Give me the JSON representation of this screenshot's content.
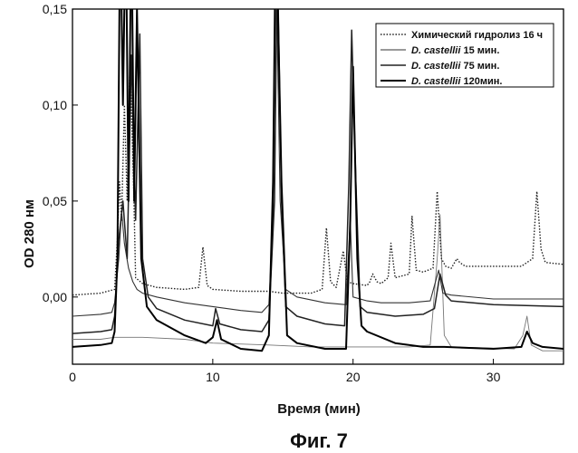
{
  "chart_data": {
    "type": "line",
    "title": "",
    "xlabel": "Время (мин)",
    "ylabel": "OD 280 нм",
    "caption": "Фиг. 7",
    "xlim": [
      0,
      35
    ],
    "ylim": [
      -0.035,
      0.15
    ],
    "x_ticks": [
      {
        "value": 0,
        "label": "0"
      },
      {
        "value": 10,
        "label": "10"
      },
      {
        "value": 20,
        "label": "20"
      },
      {
        "value": 30,
        "label": "30"
      }
    ],
    "y_ticks": [
      {
        "value": 0.0,
        "label": "0,00"
      },
      {
        "value": 0.05,
        "label": "0,05"
      },
      {
        "value": 0.1,
        "label": "0,10"
      },
      {
        "value": 0.15,
        "label": "0,15"
      }
    ],
    "legend_position": "top-right",
    "series": [
      {
        "name_prefix": "",
        "name_suffix": "Химический гидролиз 16 ч",
        "style": "dotted",
        "color": "#222222",
        "points": [
          [
            0,
            0.001
          ],
          [
            2,
            0.002
          ],
          [
            3,
            0.004
          ],
          [
            3.2,
            0.03
          ],
          [
            3.35,
            0.06
          ],
          [
            3.5,
            0.04
          ],
          [
            3.7,
            0.1
          ],
          [
            3.9,
            0.05
          ],
          [
            4.1,
            0.123
          ],
          [
            4.35,
            0.06
          ],
          [
            4.5,
            0.01
          ],
          [
            5,
            0.007
          ],
          [
            6,
            0.005
          ],
          [
            8,
            0.004
          ],
          [
            9.0,
            0.005
          ],
          [
            9.3,
            0.026
          ],
          [
            9.6,
            0.006
          ],
          [
            10,
            0.004
          ],
          [
            12,
            0.003
          ],
          [
            14,
            0.003
          ],
          [
            15,
            0.002
          ],
          [
            17,
            0.002
          ],
          [
            17.8,
            0.004
          ],
          [
            18.1,
            0.036
          ],
          [
            18.4,
            0.008
          ],
          [
            18.8,
            0.005
          ],
          [
            19.3,
            0.024
          ],
          [
            19.6,
            0.008
          ],
          [
            20,
            0.007
          ],
          [
            21,
            0.006
          ],
          [
            21.2,
            0.008
          ],
          [
            21.4,
            0.012
          ],
          [
            21.7,
            0.008
          ],
          [
            22,
            0.007
          ],
          [
            22.5,
            0.01
          ],
          [
            22.7,
            0.028
          ],
          [
            23,
            0.01
          ],
          [
            24,
            0.012
          ],
          [
            24.2,
            0.042
          ],
          [
            24.5,
            0.014
          ],
          [
            25,
            0.013
          ],
          [
            25.7,
            0.015
          ],
          [
            26.0,
            0.055
          ],
          [
            26.3,
            0.02
          ],
          [
            26.6,
            0.016
          ],
          [
            27,
            0.015
          ],
          [
            27.4,
            0.02
          ],
          [
            27.6,
            0.018
          ],
          [
            28,
            0.016
          ],
          [
            30,
            0.016
          ],
          [
            32,
            0.016
          ],
          [
            32.8,
            0.02
          ],
          [
            33.1,
            0.055
          ],
          [
            33.4,
            0.025
          ],
          [
            33.7,
            0.018
          ],
          [
            35,
            0.017
          ]
        ]
      },
      {
        "name_prefix": "D. castellii",
        "name_suffix": "15 мин.",
        "style": "solid-thin",
        "color": "#333333",
        "points": [
          [
            0,
            -0.01
          ],
          [
            2,
            -0.009
          ],
          [
            2.8,
            -0.008
          ],
          [
            3.0,
            -0.003
          ],
          [
            3.3,
            0.02
          ],
          [
            3.5,
            0.045
          ],
          [
            3.7,
            0.028
          ],
          [
            4.0,
            0.015
          ],
          [
            4.3,
            0.008
          ],
          [
            4.6,
            0.004
          ],
          [
            5,
            0.002
          ],
          [
            6,
            -0.0
          ],
          [
            8,
            -0.003
          ],
          [
            10,
            -0.005
          ],
          [
            12,
            -0.007
          ],
          [
            13.5,
            -0.008
          ],
          [
            14,
            -0.004
          ],
          [
            14.3,
            0.04
          ],
          [
            14.5,
            0.18
          ],
          [
            14.8,
            0.05
          ],
          [
            15.2,
            0.004
          ],
          [
            16,
            0.0
          ],
          [
            18,
            -0.003
          ],
          [
            19.5,
            -0.004
          ],
          [
            19.8,
            0.04
          ],
          [
            20.0,
            0.0
          ],
          [
            21,
            -0.002
          ],
          [
            22,
            -0.003
          ],
          [
            24,
            -0.003
          ],
          [
            25.5,
            -0.002
          ],
          [
            26.1,
            0.014
          ],
          [
            26.4,
            0.002
          ],
          [
            27,
            0.001
          ],
          [
            30,
            -0.001
          ],
          [
            35,
            -0.001
          ]
        ]
      },
      {
        "name_prefix": "D. castellii",
        "name_suffix": "75 мин.",
        "style": "solid",
        "color": "#222222",
        "points": [
          [
            0,
            -0.019
          ],
          [
            2,
            -0.018
          ],
          [
            2.8,
            -0.017
          ],
          [
            3.0,
            -0.01
          ],
          [
            3.3,
            0.03
          ],
          [
            3.6,
            0.05
          ],
          [
            3.9,
            0.02
          ],
          [
            4.2,
            0.126
          ],
          [
            4.5,
            0.04
          ],
          [
            4.8,
            0.137
          ],
          [
            5.0,
            0.02
          ],
          [
            5.4,
            0.0
          ],
          [
            6,
            -0.006
          ],
          [
            8,
            -0.012
          ],
          [
            10,
            -0.015
          ],
          [
            10.2,
            -0.006
          ],
          [
            10.5,
            -0.014
          ],
          [
            12,
            -0.017
          ],
          [
            13.5,
            -0.018
          ],
          [
            14,
            -0.012
          ],
          [
            14.4,
            0.05
          ],
          [
            14.6,
            0.18
          ],
          [
            14.9,
            0.05
          ],
          [
            15.2,
            -0.005
          ],
          [
            16,
            -0.01
          ],
          [
            18,
            -0.014
          ],
          [
            19.4,
            -0.015
          ],
          [
            19.7,
            0.06
          ],
          [
            19.9,
            0.139
          ],
          [
            20.2,
            0.06
          ],
          [
            20.5,
            -0.005
          ],
          [
            21,
            -0.008
          ],
          [
            23,
            -0.01
          ],
          [
            25,
            -0.009
          ],
          [
            25.8,
            -0.006
          ],
          [
            26.2,
            0.012
          ],
          [
            26.6,
            0.001
          ],
          [
            27,
            -0.002
          ],
          [
            30,
            -0.004
          ],
          [
            35,
            -0.005
          ]
        ]
      },
      {
        "name_prefix": "D. castellii",
        "name_suffix": "120мин.",
        "style": "solid-thick",
        "color": "#000000",
        "points": [
          [
            0,
            -0.026
          ],
          [
            2,
            -0.025
          ],
          [
            2.8,
            -0.024
          ],
          [
            3.0,
            -0.018
          ],
          [
            3.2,
            0.02
          ],
          [
            3.4,
            0.2
          ],
          [
            3.6,
            0.1
          ],
          [
            3.8,
            0.2
          ],
          [
            4.0,
            0.05
          ],
          [
            4.2,
            0.2
          ],
          [
            4.4,
            0.05
          ],
          [
            4.6,
            0.15
          ],
          [
            4.9,
            0.02
          ],
          [
            5.3,
            -0.005
          ],
          [
            6,
            -0.012
          ],
          [
            8,
            -0.02
          ],
          [
            9.5,
            -0.024
          ],
          [
            10.0,
            -0.021
          ],
          [
            10.3,
            -0.012
          ],
          [
            10.6,
            -0.022
          ],
          [
            12,
            -0.027
          ],
          [
            13.5,
            -0.028
          ],
          [
            14,
            -0.02
          ],
          [
            14.3,
            0.06
          ],
          [
            14.5,
            0.2
          ],
          [
            14.9,
            0.06
          ],
          [
            15.3,
            -0.02
          ],
          [
            16,
            -0.024
          ],
          [
            18,
            -0.027
          ],
          [
            19.5,
            -0.027
          ],
          [
            19.8,
            0.04
          ],
          [
            20.0,
            0.12
          ],
          [
            20.3,
            0.02
          ],
          [
            20.6,
            -0.015
          ],
          [
            21,
            -0.018
          ],
          [
            23,
            -0.024
          ],
          [
            25,
            -0.026
          ],
          [
            26.5,
            -0.026
          ],
          [
            30,
            -0.027
          ],
          [
            32,
            -0.026
          ],
          [
            32.4,
            -0.018
          ],
          [
            32.8,
            -0.024
          ],
          [
            33.5,
            -0.026
          ],
          [
            35,
            -0.027
          ]
        ]
      }
    ],
    "extra_trace": {
      "style": "thin-gray",
      "color": "#777777",
      "points": [
        [
          0,
          -0.022
        ],
        [
          2,
          -0.022
        ],
        [
          3.0,
          -0.021
        ],
        [
          5.0,
          -0.021
        ],
        [
          8,
          -0.022
        ],
        [
          10,
          -0.024
        ],
        [
          14,
          -0.025
        ],
        [
          17,
          -0.026
        ],
        [
          20,
          -0.026
        ],
        [
          24,
          -0.026
        ],
        [
          25.5,
          -0.025
        ],
        [
          26.0,
          0.02
        ],
        [
          26.2,
          0.043
        ],
        [
          26.5,
          -0.02
        ],
        [
          27,
          -0.026
        ],
        [
          31.5,
          -0.027
        ],
        [
          32.1,
          -0.02
        ],
        [
          32.4,
          -0.01
        ],
        [
          32.7,
          -0.025
        ],
        [
          33.5,
          -0.028
        ],
        [
          35,
          -0.028
        ]
      ]
    }
  }
}
